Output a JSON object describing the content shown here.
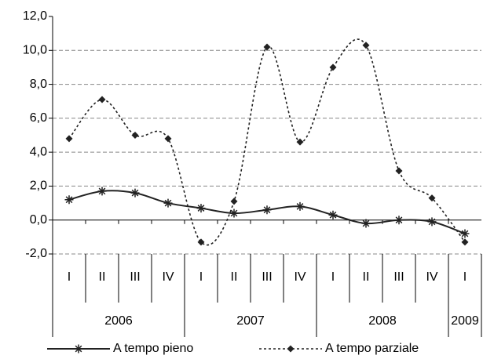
{
  "chart_data": {
    "type": "line",
    "categories": [
      "I",
      "II",
      "III",
      "IV",
      "I",
      "II",
      "III",
      "IV",
      "I",
      "II",
      "III",
      "IV",
      "I"
    ],
    "years": [
      "2006",
      null,
      null,
      null,
      "2007",
      null,
      null,
      null,
      "2008",
      null,
      null,
      null,
      "2009"
    ],
    "series": [
      {
        "name": "A tempo pieno",
        "color": "#222222",
        "marker": "asterisk",
        "dash": false,
        "values": [
          1.2,
          1.7,
          1.6,
          1.0,
          0.7,
          0.4,
          0.6,
          0.8,
          0.3,
          -0.2,
          0.0,
          -0.1,
          -0.8
        ]
      },
      {
        "name": "A tempo parziale",
        "color": "#222222",
        "marker": "diamond",
        "dash": true,
        "values": [
          4.8,
          7.1,
          5.0,
          4.8,
          -1.3,
          1.1,
          10.2,
          4.6,
          9.0,
          10.3,
          2.9,
          1.3,
          -1.3
        ]
      }
    ],
    "ylim": [
      -2,
      12
    ],
    "yticks": [
      {
        "value": -2,
        "label": "-2,0"
      },
      {
        "value": 0,
        "label": "0,0"
      },
      {
        "value": 2,
        "label": "2,0"
      },
      {
        "value": 4,
        "label": "4,0"
      },
      {
        "value": 6,
        "label": "6,0"
      },
      {
        "value": 8,
        "label": "8,0"
      },
      {
        "value": 10,
        "label": "10,0"
      },
      {
        "value": 12,
        "label": "12,0"
      }
    ],
    "grid": true,
    "smooth": true,
    "legend": "bottom"
  }
}
